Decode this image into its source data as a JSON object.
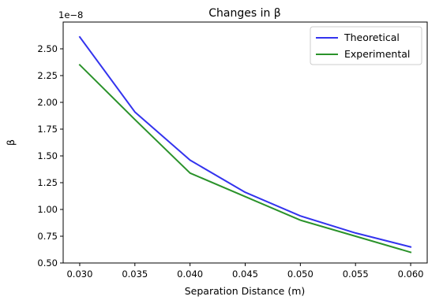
{
  "chart_data": {
    "type": "line",
    "title": "Changes in β",
    "xlabel": "Separation Distance (m)",
    "ylabel": "β",
    "y_offset_label": "1e−8",
    "xlim": [
      0.0285,
      0.0615
    ],
    "ylim": [
      0.5,
      2.75
    ],
    "x_ticks": [
      0.03,
      0.035,
      0.04,
      0.045,
      0.05,
      0.055,
      0.06
    ],
    "x_tick_labels": [
      "0.030",
      "0.035",
      "0.040",
      "0.045",
      "0.050",
      "0.055",
      "0.060"
    ],
    "y_ticks": [
      0.5,
      0.75,
      1.0,
      1.25,
      1.5,
      1.75,
      2.0,
      2.25,
      2.5
    ],
    "y_tick_labels": [
      "0.50",
      "0.75",
      "1.00",
      "1.25",
      "1.50",
      "1.75",
      "2.00",
      "2.25",
      "2.50"
    ],
    "grid": false,
    "legend_position": "top-right",
    "x": [
      0.03,
      0.035,
      0.04,
      0.045,
      0.05,
      0.055,
      0.06
    ],
    "series": [
      {
        "name": "Theoretical",
        "color": "#3333ee",
        "values": [
          2.61,
          1.91,
          1.46,
          1.16,
          0.94,
          0.78,
          0.65
        ]
      },
      {
        "name": "Experimental",
        "color": "#2a922a",
        "values": [
          2.35,
          1.84,
          1.34,
          1.12,
          0.9,
          0.75,
          0.6
        ]
      }
    ]
  }
}
